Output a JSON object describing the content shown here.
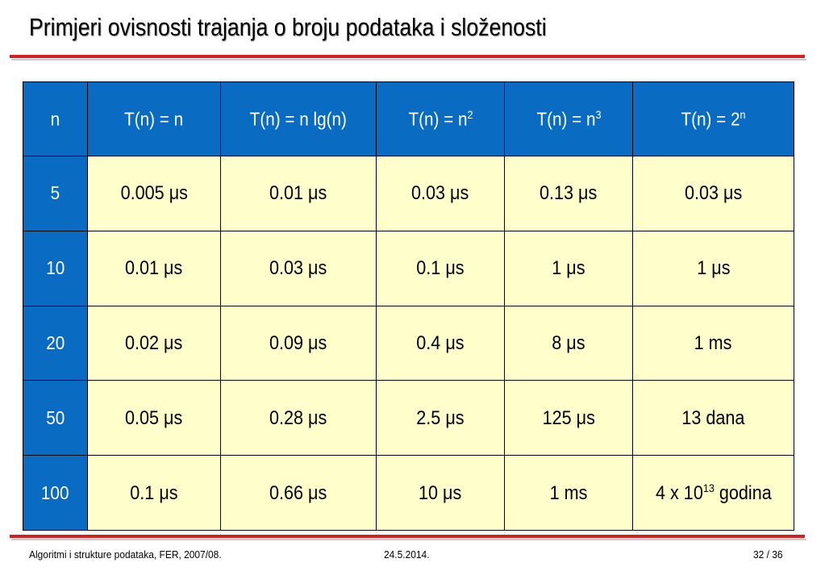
{
  "slide": {
    "title": "Primjeri ovisnosti trajanja o broju podataka i složenosti"
  },
  "table": {
    "headers": [
      {
        "base": "n",
        "sup": ""
      },
      {
        "base": "T(n) = n",
        "sup": ""
      },
      {
        "base": "T(n) = n lg(n)",
        "sup": ""
      },
      {
        "base": "T(n) = n",
        "sup": "2"
      },
      {
        "base": "T(n) = n",
        "sup": "3"
      },
      {
        "base": "T(n) = 2",
        "sup": "n"
      }
    ],
    "rows": [
      {
        "n": "5",
        "cells": [
          {
            "pre": "0.005 ",
            "sup": "",
            "post": "μs"
          },
          {
            "pre": "0.01 ",
            "sup": "",
            "post": "μs"
          },
          {
            "pre": "0.03 ",
            "sup": "",
            "post": "μs"
          },
          {
            "pre": "0.13 ",
            "sup": "",
            "post": "μs"
          },
          {
            "pre": "0.03 ",
            "sup": "",
            "post": "μs"
          }
        ]
      },
      {
        "n": "10",
        "cells": [
          {
            "pre": "0.01 ",
            "sup": "",
            "post": "μs"
          },
          {
            "pre": "0.03 ",
            "sup": "",
            "post": "μs"
          },
          {
            "pre": "0.1 ",
            "sup": "",
            "post": "μs"
          },
          {
            "pre": "1 ",
            "sup": "",
            "post": "μs"
          },
          {
            "pre": "1 ",
            "sup": "",
            "post": "μs"
          }
        ]
      },
      {
        "n": "20",
        "cells": [
          {
            "pre": "0.02 ",
            "sup": "",
            "post": "μs"
          },
          {
            "pre": "0.09 ",
            "sup": "",
            "post": "μs"
          },
          {
            "pre": "0.4 ",
            "sup": "",
            "post": "μs"
          },
          {
            "pre": "8 ",
            "sup": "",
            "post": "μs"
          },
          {
            "pre": "1 ms",
            "sup": "",
            "post": ""
          }
        ]
      },
      {
        "n": "50",
        "cells": [
          {
            "pre": "0.05 ",
            "sup": "",
            "post": "μs"
          },
          {
            "pre": "0.28 ",
            "sup": "",
            "post": "μs"
          },
          {
            "pre": "2.5 ",
            "sup": "",
            "post": "μs"
          },
          {
            "pre": "125 ",
            "sup": "",
            "post": "μs"
          },
          {
            "pre": "13 dana",
            "sup": "",
            "post": ""
          }
        ]
      },
      {
        "n": "100",
        "cells": [
          {
            "pre": "0.1 ",
            "sup": "",
            "post": "μs"
          },
          {
            "pre": "0.66 ",
            "sup": "",
            "post": "μs"
          },
          {
            "pre": "10 ",
            "sup": "",
            "post": "μs"
          },
          {
            "pre": "1 ms",
            "sup": "",
            "post": ""
          },
          {
            "pre": "4 x 10",
            "sup": "13",
            "post": " godina"
          }
        ]
      }
    ]
  },
  "footer": {
    "left": "Algoritmi i strukture podataka, FER, 2007/08.",
    "center": "24.5.2014.",
    "right": "32 / 36"
  },
  "colors": {
    "header_blue": "#0a6bc3",
    "cell_yellow": "#ffffcc",
    "rule_red": "#d81f1f"
  }
}
